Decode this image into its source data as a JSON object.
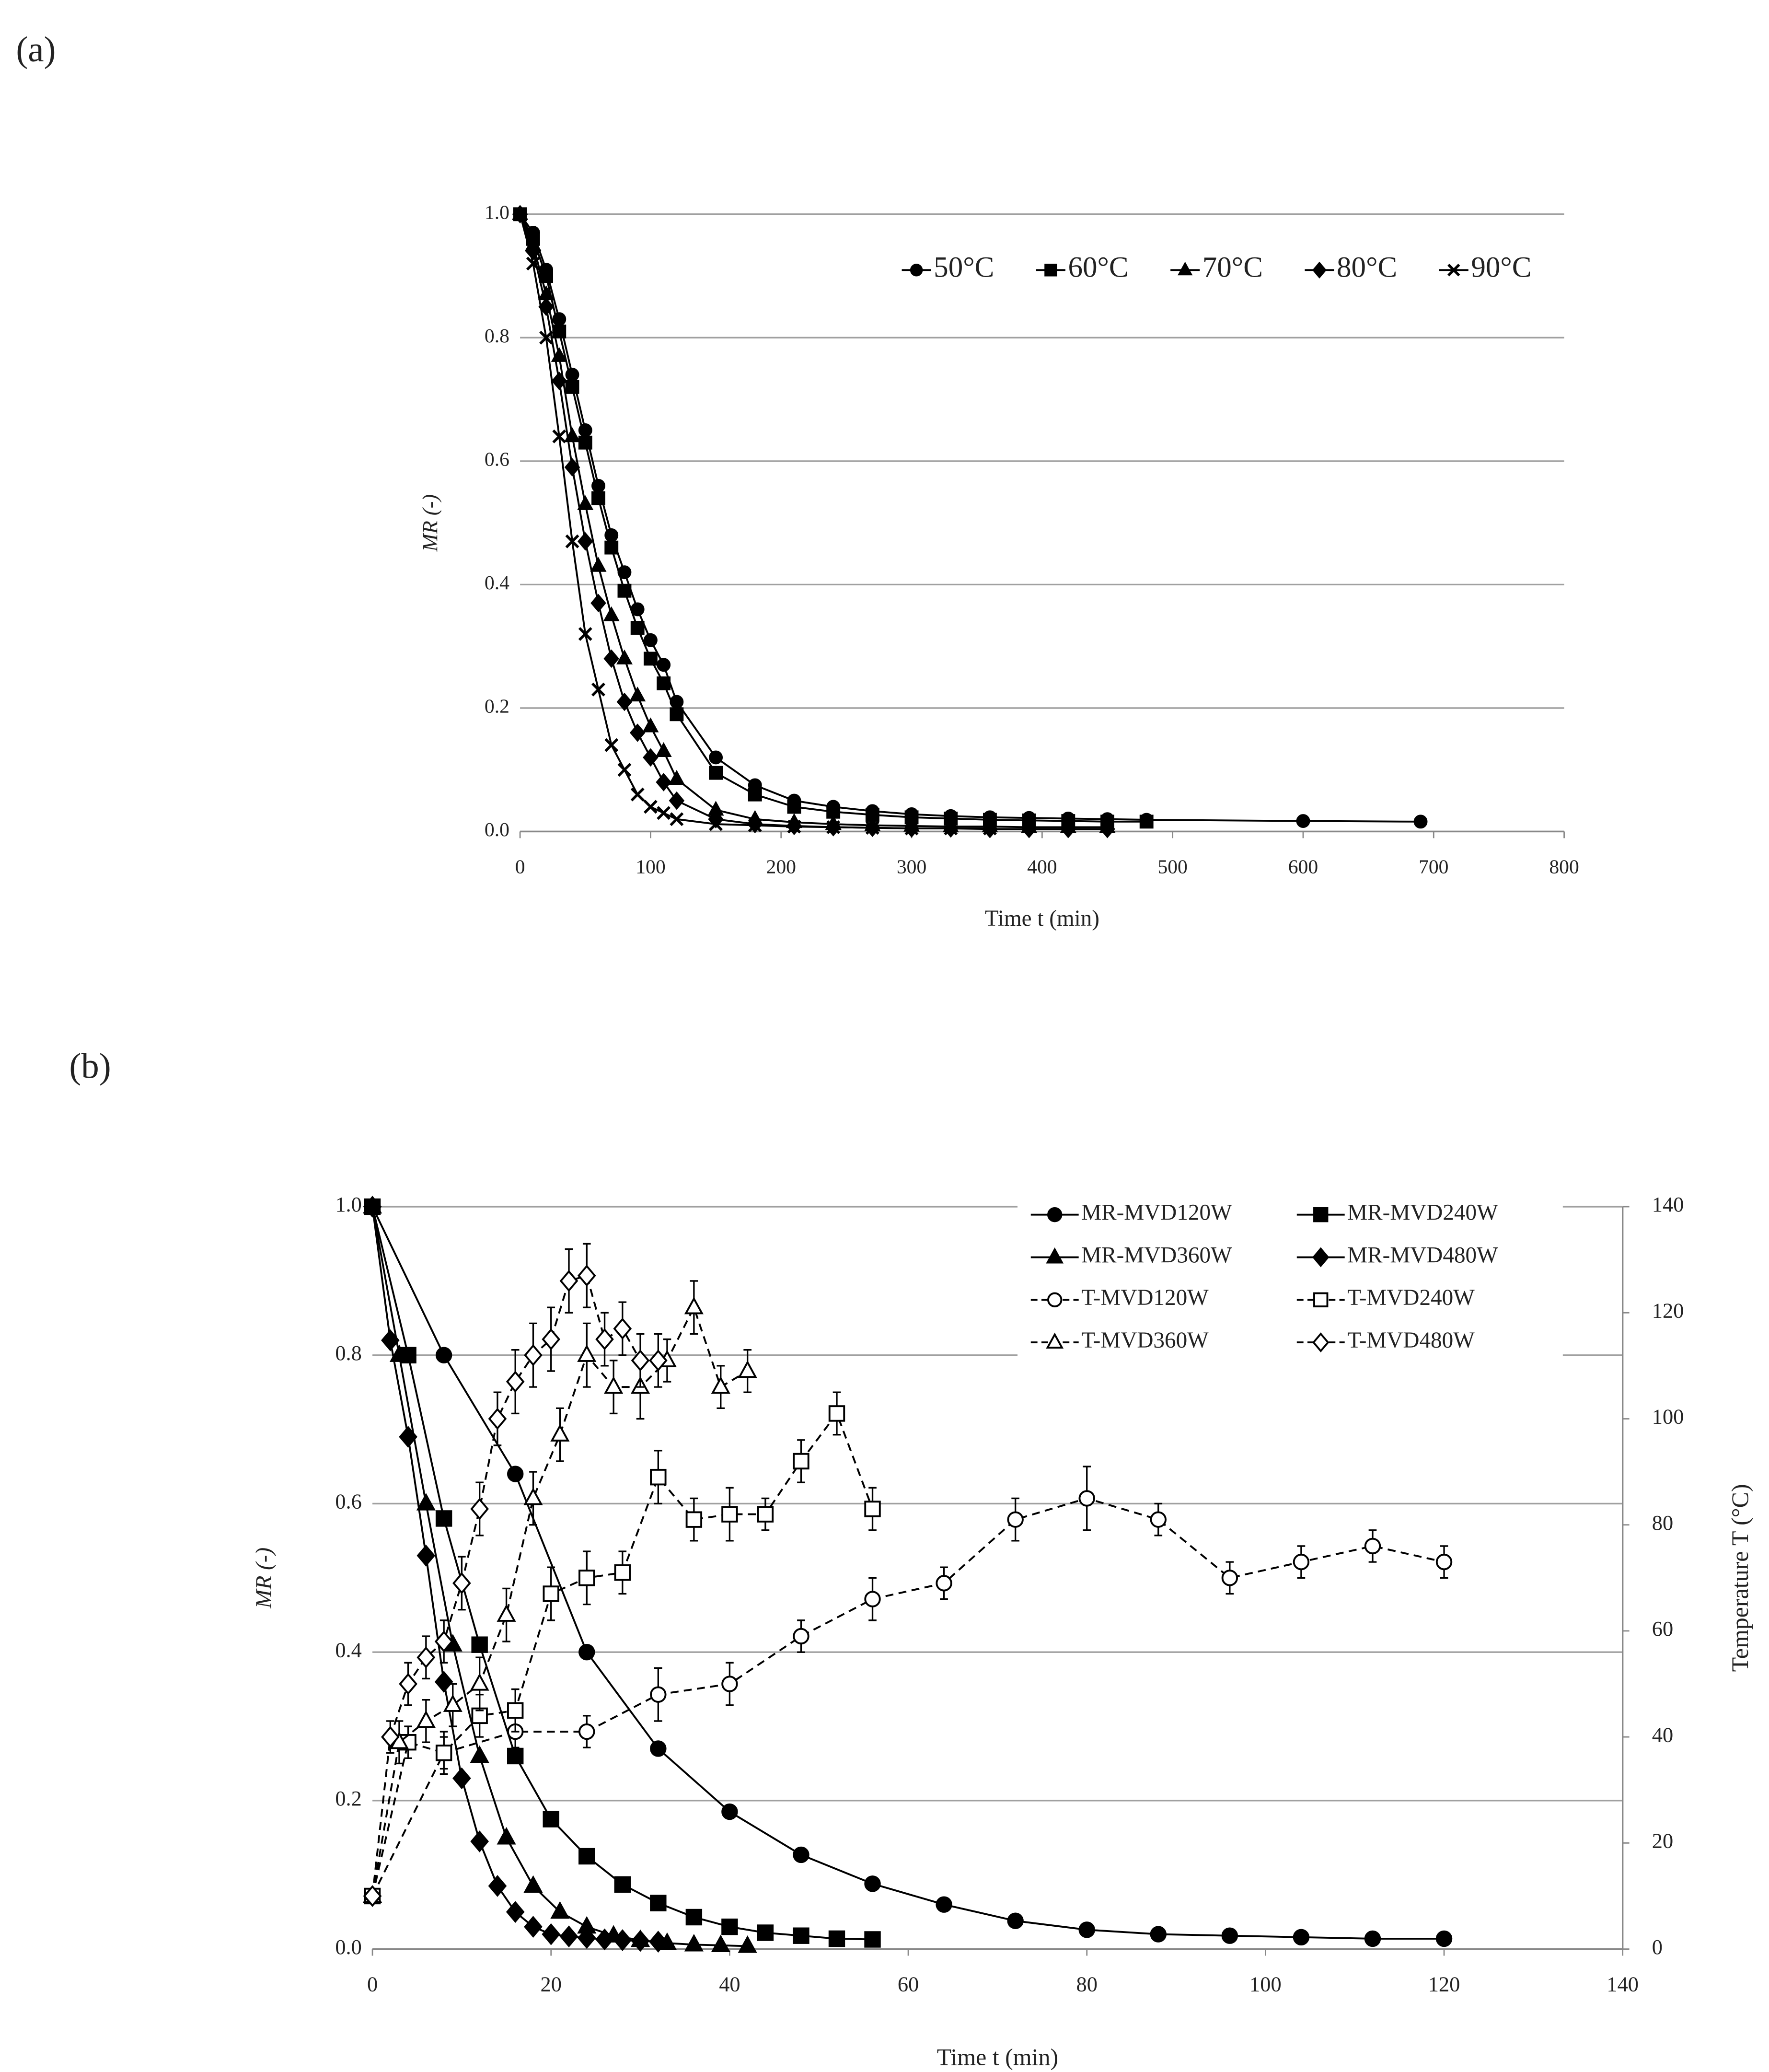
{
  "chart_data": [
    {
      "type": "line",
      "panel_label": "(a)",
      "x_label": "Time t (min)",
      "y_label": "MR (-)",
      "xlim": [
        0,
        800
      ],
      "xticks": [
        0,
        100,
        200,
        300,
        400,
        500,
        600,
        700,
        800
      ],
      "ylim": [
        0,
        1
      ],
      "yticks": [
        {
          "value": 0,
          "label": "0.0"
        },
        0.2,
        0.4,
        0.6,
        0.8,
        {
          "value": 1,
          "label": "1.0"
        }
      ],
      "grid": true,
      "legend_position": "top-right",
      "series": [
        {
          "name": "50°C",
          "color": "#000000",
          "marker": "circle",
          "marker_fill": "filled",
          "line_style": "solid",
          "x": [
            0,
            10,
            20,
            30,
            40,
            50,
            60,
            70,
            80,
            90,
            100,
            110,
            120,
            150,
            180,
            210,
            240,
            270,
            300,
            330,
            360,
            390,
            420,
            450,
            480,
            600,
            690
          ],
          "values": [
            1.0,
            0.97,
            0.91,
            0.83,
            0.74,
            0.65,
            0.56,
            0.48,
            0.42,
            0.36,
            0.31,
            0.27,
            0.21,
            0.12,
            0.075,
            0.05,
            0.04,
            0.033,
            0.028,
            0.025,
            0.023,
            0.022,
            0.021,
            0.02,
            0.019,
            0.017,
            0.016
          ]
        },
        {
          "name": "60°C",
          "color": "#000000",
          "marker": "square",
          "marker_fill": "filled",
          "line_style": "solid",
          "x": [
            0,
            10,
            20,
            30,
            40,
            50,
            60,
            70,
            80,
            90,
            100,
            110,
            120,
            150,
            180,
            210,
            240,
            270,
            300,
            330,
            360,
            390,
            420,
            450,
            480
          ],
          "values": [
            1.0,
            0.96,
            0.9,
            0.81,
            0.72,
            0.63,
            0.54,
            0.46,
            0.39,
            0.33,
            0.28,
            0.24,
            0.19,
            0.095,
            0.06,
            0.04,
            0.032,
            0.027,
            0.023,
            0.021,
            0.019,
            0.018,
            0.017,
            0.016,
            0.016
          ]
        },
        {
          "name": "70°C",
          "color": "#000000",
          "marker": "triangle",
          "marker_fill": "filled",
          "line_style": "solid",
          "x": [
            0,
            10,
            20,
            30,
            40,
            50,
            60,
            70,
            80,
            90,
            100,
            110,
            120,
            150,
            180,
            210,
            240,
            270,
            300,
            330,
            360,
            390,
            420,
            450
          ],
          "values": [
            1.0,
            0.95,
            0.87,
            0.77,
            0.64,
            0.53,
            0.43,
            0.35,
            0.28,
            0.22,
            0.17,
            0.13,
            0.085,
            0.035,
            0.02,
            0.015,
            0.012,
            0.01,
            0.009,
            0.008,
            0.008,
            0.007,
            0.007,
            0.007
          ]
        },
        {
          "name": "80°C",
          "color": "#000000",
          "marker": "diamond",
          "marker_fill": "filled",
          "line_style": "solid",
          "x": [
            0,
            10,
            20,
            30,
            40,
            50,
            60,
            70,
            80,
            90,
            100,
            110,
            120,
            150,
            180,
            210,
            240,
            270,
            300,
            330,
            360,
            390,
            420,
            450
          ],
          "values": [
            1.0,
            0.94,
            0.85,
            0.73,
            0.59,
            0.47,
            0.37,
            0.28,
            0.21,
            0.16,
            0.12,
            0.08,
            0.05,
            0.02,
            0.012,
            0.009,
            0.007,
            0.006,
            0.005,
            0.005,
            0.004,
            0.004,
            0.004,
            0.004
          ]
        },
        {
          "name": "90°C",
          "color": "#000000",
          "marker": "cross",
          "marker_fill": "filled",
          "line_style": "solid",
          "x": [
            0,
            10,
            20,
            30,
            40,
            50,
            60,
            70,
            80,
            90,
            100,
            110,
            120,
            150,
            180,
            210,
            240,
            270,
            300,
            330,
            360
          ],
          "values": [
            1.0,
            0.92,
            0.8,
            0.64,
            0.47,
            0.32,
            0.23,
            0.14,
            0.1,
            0.06,
            0.04,
            0.03,
            0.02,
            0.012,
            0.01,
            0.008,
            0.007,
            0.006,
            0.005,
            0.005,
            0.005
          ]
        }
      ]
    },
    {
      "type": "line",
      "panel_label": "(b)",
      "x_label": "Time t (min)",
      "y_label": "MR (-)",
      "y2_label": "Temperature T (°C)",
      "xlim": [
        0,
        140
      ],
      "xticks": [
        0,
        20,
        40,
        60,
        80,
        100,
        120,
        140
      ],
      "ylim": [
        0,
        1
      ],
      "yticks": [
        {
          "value": 0,
          "label": "0.0"
        },
        0.2,
        0.4,
        0.6,
        0.8,
        {
          "value": 1,
          "label": "1.0"
        }
      ],
      "y2lim": [
        0,
        140
      ],
      "y2ticks": [
        0,
        20,
        40,
        60,
        80,
        100,
        120,
        140
      ],
      "grid": true,
      "legend_position": "top-right",
      "series": [
        {
          "name": "MR-MVD120W",
          "color": "#000000",
          "marker": "circle",
          "marker_fill": "filled",
          "line_style": "solid",
          "x": [
            0,
            8,
            16,
            24,
            32,
            40,
            48,
            56,
            64,
            72,
            80,
            88,
            96,
            104,
            112,
            120
          ],
          "values": [
            1.0,
            0.8,
            0.64,
            0.4,
            0.27,
            0.185,
            0.127,
            0.088,
            0.06,
            0.038,
            0.026,
            0.02,
            0.018,
            0.016,
            0.014,
            0.014
          ]
        },
        {
          "name": "MR-MVD240W",
          "color": "#000000",
          "marker": "square",
          "marker_fill": "filled",
          "line_style": "solid",
          "x": [
            0,
            4,
            8,
            12,
            16,
            20,
            24,
            28,
            32,
            36,
            40,
            44,
            48,
            52,
            56
          ],
          "values": [
            1.0,
            0.8,
            0.58,
            0.41,
            0.26,
            0.175,
            0.125,
            0.087,
            0.062,
            0.043,
            0.03,
            0.022,
            0.018,
            0.014,
            0.013
          ]
        },
        {
          "name": "MR-MVD360W",
          "color": "#000000",
          "marker": "triangle",
          "marker_fill": "filled",
          "line_style": "solid",
          "x": [
            0,
            3,
            6,
            9,
            12,
            15,
            18,
            21,
            24,
            27,
            30,
            33,
            36,
            39,
            42
          ],
          "values": [
            1.0,
            0.8,
            0.6,
            0.41,
            0.26,
            0.15,
            0.085,
            0.05,
            0.03,
            0.018,
            0.012,
            0.008,
            0.006,
            0.005,
            0.004
          ]
        },
        {
          "name": "MR-MVD480W",
          "color": "#000000",
          "marker": "diamond",
          "marker_fill": "filled",
          "line_style": "solid",
          "x": [
            0,
            2,
            4,
            6,
            8,
            10,
            12,
            14,
            16,
            18,
            20,
            22,
            24,
            26,
            28,
            30,
            32
          ],
          "values": [
            1.0,
            0.82,
            0.69,
            0.53,
            0.36,
            0.23,
            0.145,
            0.085,
            0.05,
            0.03,
            0.02,
            0.017,
            0.015,
            0.013,
            0.012,
            0.011,
            0.01
          ]
        },
        {
          "name": "T-MVD120W",
          "color": "#000000",
          "marker": "circle",
          "marker_fill": "open",
          "line_style": "dashed",
          "axis": "y2",
          "x": [
            0,
            8,
            16,
            24,
            32,
            40,
            48,
            56,
            64,
            72,
            80,
            88,
            96,
            104,
            112,
            120
          ],
          "values": [
            10,
            37,
            41,
            41,
            48,
            50,
            59,
            66,
            69,
            81,
            85,
            81,
            70,
            73,
            76,
            73
          ],
          "errors": [
            1,
            3,
            3,
            3,
            5,
            4,
            3,
            4,
            3,
            4,
            6,
            3,
            3,
            3,
            3,
            3
          ]
        },
        {
          "name": "T-MVD240W",
          "color": "#000000",
          "marker": "square",
          "marker_fill": "open",
          "line_style": "dashed",
          "axis": "y2",
          "x": [
            0,
            4,
            8,
            12,
            16,
            20,
            24,
            28,
            32,
            36,
            40,
            44,
            48,
            52,
            56
          ],
          "values": [
            10,
            39,
            37,
            44,
            45,
            67,
            70,
            71,
            89,
            81,
            82,
            82,
            92,
            101,
            83
          ],
          "errors": [
            1,
            3,
            4,
            4,
            4,
            5,
            5,
            4,
            5,
            4,
            5,
            3,
            4,
            4,
            4
          ]
        },
        {
          "name": "T-MVD360W",
          "color": "#000000",
          "marker": "triangle",
          "marker_fill": "open",
          "line_style": "dashed",
          "axis": "y2",
          "x": [
            0,
            3,
            6,
            9,
            12,
            15,
            18,
            21,
            24,
            27,
            30,
            33,
            36,
            39,
            42
          ],
          "values": [
            10,
            39,
            43,
            46,
            50,
            63,
            85,
            97,
            112,
            106,
            106,
            111,
            121,
            106,
            109
          ],
          "errors": [
            1,
            4,
            4,
            4,
            5,
            5,
            5,
            5,
            6,
            5,
            6,
            4,
            5,
            4,
            4
          ]
        },
        {
          "name": "T-MVD480W",
          "color": "#000000",
          "marker": "diamond",
          "marker_fill": "open",
          "line_style": "dashed",
          "axis": "y2",
          "x": [
            0,
            2,
            4,
            6,
            8,
            10,
            12,
            14,
            16,
            18,
            20,
            22,
            24,
            26,
            28,
            30,
            32
          ],
          "values": [
            10,
            40,
            50,
            55,
            58,
            69,
            83,
            100,
            107,
            112,
            115,
            126,
            127,
            115,
            117,
            111,
            111
          ],
          "errors": [
            1,
            3,
            4,
            4,
            4,
            5,
            5,
            5,
            6,
            6,
            6,
            6,
            6,
            5,
            5,
            5,
            5
          ]
        }
      ]
    }
  ]
}
